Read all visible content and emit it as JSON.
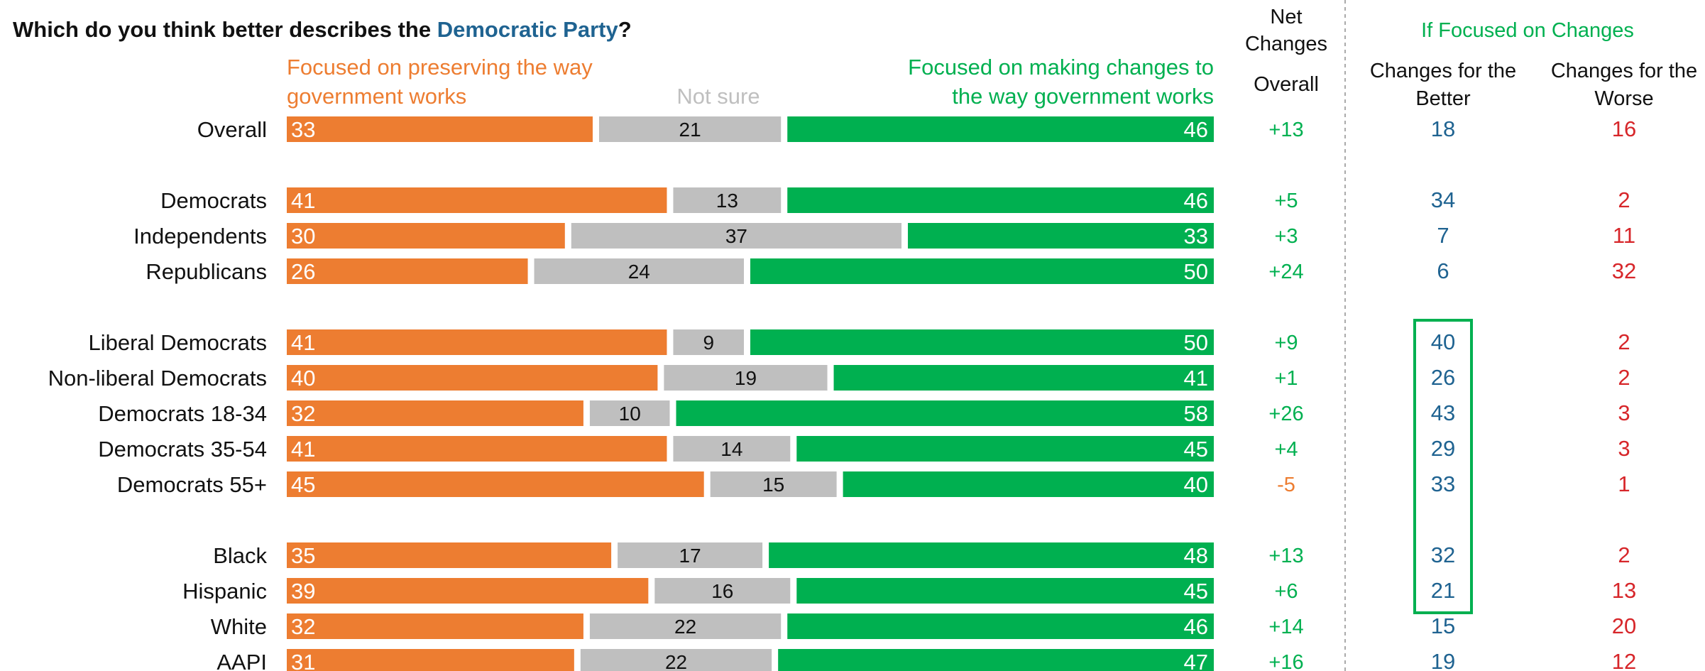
{
  "title": {
    "prefix": "Which do you think better describes the ",
    "party": "Democratic Party",
    "suffix": "?"
  },
  "headers": {
    "preserving": [
      "Focused on preserving the way",
      "government works"
    ],
    "not_sure": "Not sure",
    "changes": [
      "Focused on making changes to",
      "the way government works"
    ],
    "net": [
      "Net",
      "Changes"
    ],
    "net_sub": "Overall",
    "if_focused": "If Focused on Changes",
    "better": [
      "Changes for the",
      "Better"
    ],
    "worse": [
      "Changes for the",
      "Worse"
    ]
  },
  "colors": {
    "preserving": "#ED7D31",
    "not_sure": "#BFBFBF",
    "changes": "#00B050",
    "party": "#1F6391",
    "better": "#1F6391",
    "worse": "#D7262A",
    "negative_net": "#ED7D31"
  },
  "chart_data": {
    "type": "bar",
    "orientation": "horizontal",
    "stacked": true,
    "categories": [
      "Overall",
      "Democrats",
      "Independents",
      "Republicans",
      "Liberal Democrats",
      "Non-liberal Democrats",
      "Democrats 18-34",
      "Democrats 35-54",
      "Democrats 55+",
      "Black",
      "Hispanic",
      "White",
      "AAPI"
    ],
    "groups": [
      0,
      1,
      1,
      1,
      2,
      2,
      2,
      2,
      2,
      3,
      3,
      3,
      3
    ],
    "series": [
      {
        "name": "Focused on preserving the way government works",
        "values": [
          33,
          41,
          30,
          26,
          41,
          40,
          32,
          41,
          45,
          35,
          39,
          32,
          31
        ]
      },
      {
        "name": "Not sure",
        "values": [
          21,
          13,
          37,
          24,
          9,
          19,
          10,
          14,
          15,
          17,
          16,
          22,
          22
        ]
      },
      {
        "name": "Focused on making changes to the way government works",
        "values": [
          46,
          46,
          33,
          50,
          50,
          41,
          58,
          45,
          40,
          48,
          45,
          46,
          47
        ]
      }
    ],
    "net_changes": [
      "+13",
      "+5",
      "+3",
      "+24",
      "+9",
      "+1",
      "+26",
      "+4",
      "-5",
      "+13",
      "+6",
      "+14",
      "+16"
    ],
    "changes_for_better": [
      18,
      34,
      7,
      6,
      40,
      26,
      43,
      29,
      33,
      32,
      21,
      15,
      19
    ],
    "changes_for_worse": [
      16,
      2,
      11,
      32,
      2,
      2,
      3,
      3,
      1,
      2,
      13,
      20,
      12
    ],
    "highlighted_better_rows": [
      4,
      10
    ],
    "xlim": [
      0,
      100
    ],
    "grid": false
  }
}
